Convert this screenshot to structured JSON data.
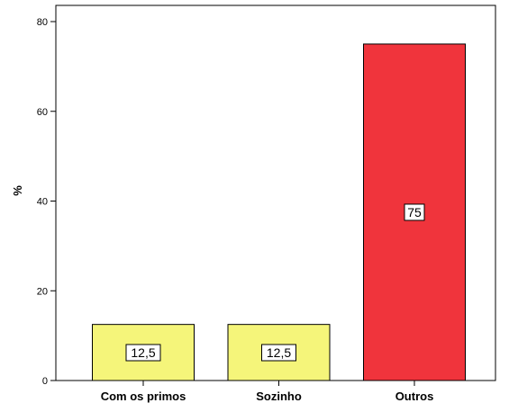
{
  "chart_data": {
    "type": "bar",
    "categories": [
      "Com os primos",
      "Sozinho",
      "Outros"
    ],
    "values": [
      12.5,
      12.5,
      75
    ],
    "data_labels": [
      "12,5",
      "12,5",
      "75"
    ],
    "bar_colors": [
      "#f5f57a",
      "#f5f57a",
      "#f0343c"
    ],
    "title": "",
    "xlabel": "",
    "ylabel": "%",
    "ylim": [
      0,
      80
    ],
    "yticks": [
      0,
      20,
      40,
      60,
      80
    ],
    "grid": false,
    "legend": "none"
  }
}
